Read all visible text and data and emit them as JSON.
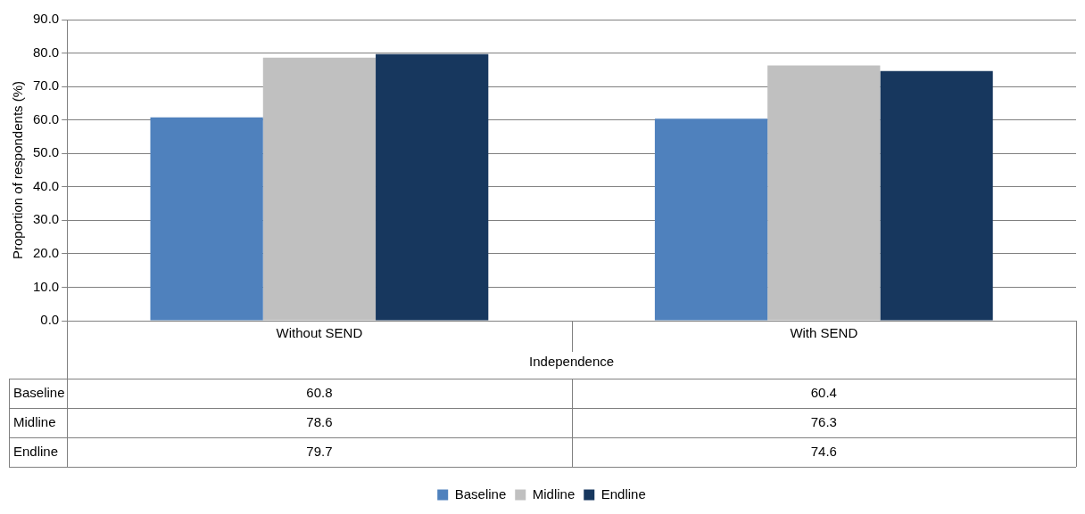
{
  "chart_data": {
    "type": "bar",
    "xlabel": "Independence",
    "ylabel": "Proportion of respondents (%)",
    "categories": [
      "Without SEND",
      "With SEND"
    ],
    "series": [
      {
        "name": "Baseline",
        "color": "#4f81bd",
        "values": [
          60.8,
          60.4
        ]
      },
      {
        "name": "Midline",
        "color": "#c0c0c0",
        "values": [
          78.6,
          76.3
        ]
      },
      {
        "name": "Endline",
        "color": "#17375e",
        "values": [
          79.7,
          74.6
        ]
      }
    ],
    "ylim": [
      0,
      90
    ],
    "yticks": [
      {
        "value": 0,
        "label": "0.0"
      },
      {
        "value": 10,
        "label": "10.0"
      },
      {
        "value": 20,
        "label": "20.0"
      },
      {
        "value": 30,
        "label": "30.0"
      },
      {
        "value": 40,
        "label": "40.0"
      },
      {
        "value": 50,
        "label": "50.0"
      },
      {
        "value": 60,
        "label": "60.0"
      },
      {
        "value": 70,
        "label": "70.0"
      },
      {
        "value": 80,
        "label": "80.0"
      },
      {
        "value": 90,
        "label": "90.0"
      }
    ],
    "grid": "y",
    "legend": "bottom",
    "data_labels": true
  }
}
